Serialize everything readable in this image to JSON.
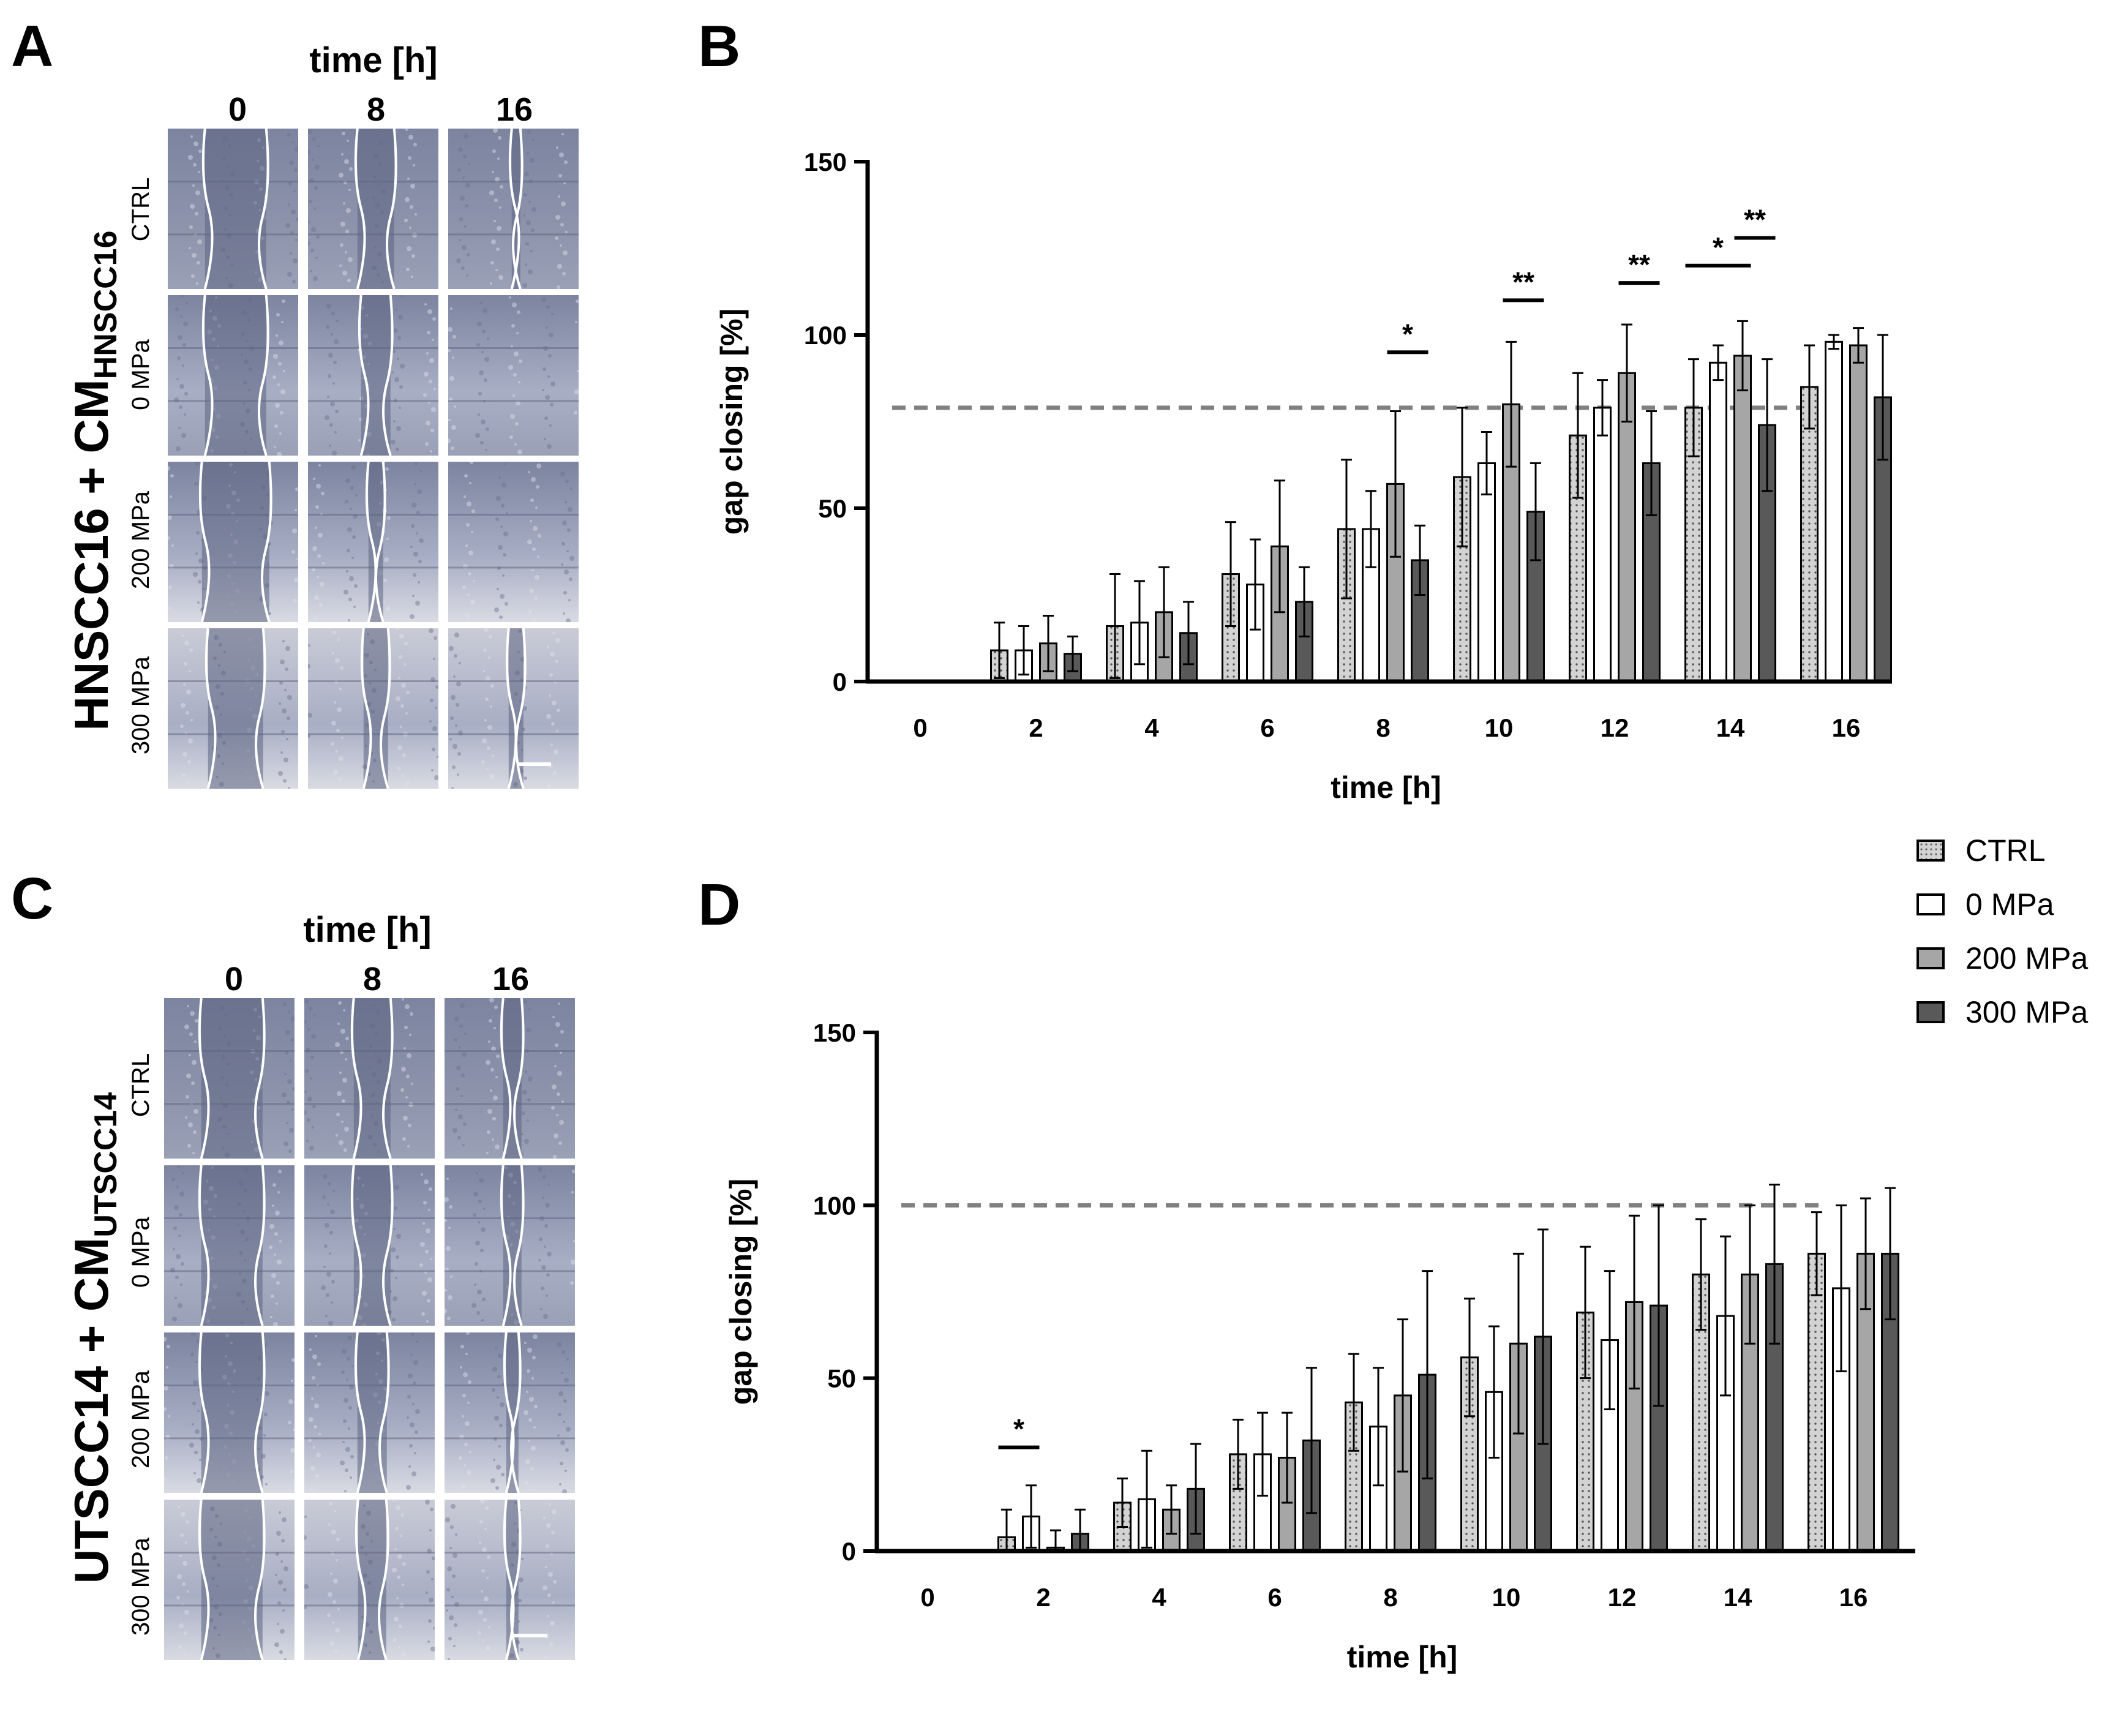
{
  "panels": {
    "A": {
      "label": "A",
      "side_title": "HNSCC16 + CM",
      "side_title_sub": "HNSCC16",
      "time_header": "time [h]",
      "columns": [
        "0",
        "8",
        "16"
      ],
      "rows": [
        "CTRL",
        "0 MPa",
        "200 MPa",
        "300 MPa"
      ]
    },
    "C": {
      "label": "C",
      "side_title": "UTSCC14 + CM",
      "side_title_sub": "UTSCC14",
      "time_header": "time [h]",
      "columns": [
        "0",
        "8",
        "16"
      ],
      "rows": [
        "CTRL",
        "0 MPa",
        "200 MPa",
        "300 MPa"
      ]
    },
    "B": {
      "label": "B"
    },
    "D": {
      "label": "D"
    }
  },
  "legend": {
    "items": [
      {
        "label": "CTRL",
        "color": "#d3d3d3",
        "pattern": "dots"
      },
      {
        "label": "0 MPa",
        "color": "#ffffff",
        "pattern": "none"
      },
      {
        "label": "200 MPa",
        "color": "#a6a6a6",
        "pattern": "none"
      },
      {
        "label": "300 MPa",
        "color": "#595959",
        "pattern": "none"
      }
    ]
  },
  "chart_data": [
    {
      "id": "B",
      "type": "bar",
      "xlabel": "time [h]",
      "ylabel": "gap closing [%]",
      "ylim": [
        0,
        150
      ],
      "yticks": [
        0,
        50,
        100,
        150
      ],
      "categories": [
        "0",
        "2",
        "4",
        "6",
        "8",
        "10",
        "12",
        "14",
        "16"
      ],
      "reference_line": 79,
      "series": [
        {
          "name": "CTRL",
          "values": [
            0,
            9,
            16,
            31,
            44,
            59,
            71,
            79,
            85
          ],
          "errors": [
            0,
            8,
            15,
            15,
            20,
            20,
            18,
            14,
            12
          ]
        },
        {
          "name": "0 MPa",
          "values": [
            0,
            9,
            17,
            28,
            44,
            63,
            79,
            92,
            98
          ],
          "errors": [
            0,
            7,
            12,
            13,
            11,
            9,
            8,
            5,
            2
          ]
        },
        {
          "name": "200 MPa",
          "values": [
            0,
            11,
            20,
            39,
            57,
            80,
            89,
            94,
            97
          ],
          "errors": [
            0,
            8,
            13,
            19,
            21,
            18,
            14,
            10,
            5
          ]
        },
        {
          "name": "300 MPa",
          "values": [
            0,
            8,
            14,
            23,
            35,
            49,
            63,
            74,
            82
          ],
          "errors": [
            0,
            5,
            9,
            10,
            10,
            14,
            15,
            19,
            18
          ]
        }
      ],
      "significance": [
        {
          "label": "*",
          "category": "8",
          "from_series": 2,
          "to_series": 3,
          "y": 95
        },
        {
          "label": "**",
          "category": "10",
          "from_series": 2,
          "to_series": 3,
          "y": 110
        },
        {
          "label": "**",
          "category": "12",
          "from_series": 2,
          "to_series": 3,
          "y": 115
        },
        {
          "label": "*",
          "category": "14",
          "from_series": 0,
          "to_series": 2,
          "y": 120
        },
        {
          "label": "**",
          "category": "14",
          "from_series": 2,
          "to_series": 3,
          "y": 128
        }
      ]
    },
    {
      "id": "D",
      "type": "bar",
      "xlabel": "time [h]",
      "ylabel": "gap closing [%]",
      "ylim": [
        0,
        150
      ],
      "yticks": [
        0,
        50,
        100,
        150
      ],
      "categories": [
        "0",
        "2",
        "4",
        "6",
        "8",
        "10",
        "12",
        "14",
        "16"
      ],
      "reference_line": 100,
      "series": [
        {
          "name": "CTRL",
          "values": [
            0,
            4,
            14,
            28,
            43,
            56,
            69,
            80,
            86
          ],
          "errors": [
            0,
            8,
            7,
            10,
            14,
            17,
            19,
            16,
            12
          ]
        },
        {
          "name": "0 MPa",
          "values": [
            0,
            10,
            15,
            28,
            36,
            46,
            61,
            68,
            76
          ],
          "errors": [
            0,
            9,
            14,
            12,
            17,
            19,
            20,
            23,
            24
          ]
        },
        {
          "name": "200 MPa",
          "values": [
            0,
            1,
            12,
            27,
            45,
            60,
            72,
            80,
            86
          ],
          "errors": [
            0,
            5,
            7,
            13,
            22,
            26,
            25,
            20,
            16
          ]
        },
        {
          "name": "300 MPa",
          "values": [
            0,
            5,
            18,
            32,
            51,
            62,
            71,
            83,
            86
          ],
          "errors": [
            0,
            7,
            13,
            21,
            30,
            31,
            29,
            23,
            19
          ]
        }
      ],
      "significance": [
        {
          "label": "*",
          "category": "2",
          "from_series": 0,
          "to_series": 1,
          "y": 30
        }
      ]
    }
  ]
}
